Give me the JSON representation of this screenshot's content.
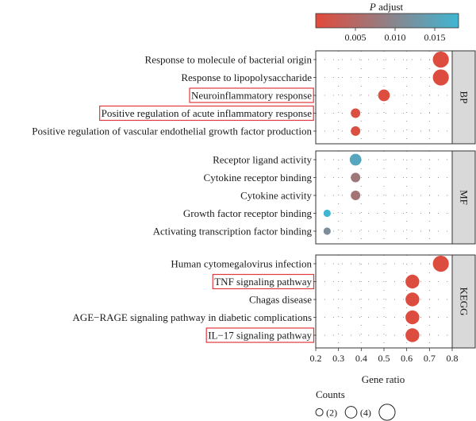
{
  "chart_data": {
    "type": "scatter",
    "xlabel": "Gene ratio",
    "xlim": [
      0.2,
      0.8
    ],
    "xticks": [
      "0.2",
      "0.3",
      "0.4",
      "0.5",
      "0.6",
      "0.7",
      "0.8"
    ],
    "color_legend": {
      "title_italic": "P",
      "title_rest": " adjust",
      "min": 0.0,
      "max": 0.018,
      "ticks": [
        {
          "value": 0.005,
          "label": "0.005"
        },
        {
          "value": 0.01,
          "label": "0.010"
        },
        {
          "value": 0.015,
          "label": "0.015"
        }
      ],
      "low_color": "#e24a3b",
      "high_color": "#3fb6d2"
    },
    "size_legend": {
      "title": "Counts",
      "entries": [
        {
          "count": 2,
          "label": "(2)"
        },
        {
          "count": 4,
          "label": "(4)"
        },
        {
          "count": 6,
          "label": ""
        }
      ]
    },
    "highlight_color": "#e0393e",
    "panels": [
      {
        "label": "BP",
        "terms": [
          {
            "name": "Response to molecule of bacterial origin",
            "gene_ratio": 0.75,
            "count": 6,
            "p_adjust": 0.0005,
            "highlight": false
          },
          {
            "name": "Response to lipopolysaccharide",
            "gene_ratio": 0.75,
            "count": 6,
            "p_adjust": 0.0005,
            "highlight": false
          },
          {
            "name": "Neuroinflammatory response",
            "gene_ratio": 0.5,
            "count": 4,
            "p_adjust": 0.0006,
            "highlight": true
          },
          {
            "name": "Positive regulation of acute inflammatory response",
            "gene_ratio": 0.375,
            "count": 3,
            "p_adjust": 0.0008,
            "highlight": true
          },
          {
            "name": "Positive regulation of vascular endothelial growth factor production",
            "gene_ratio": 0.375,
            "count": 3,
            "p_adjust": 0.0008,
            "highlight": false
          }
        ]
      },
      {
        "label": "MF",
        "terms": [
          {
            "name": "Receptor ligand activity",
            "gene_ratio": 0.375,
            "count": 4,
            "p_adjust": 0.0155,
            "highlight": false
          },
          {
            "name": "Cytokine receptor binding",
            "gene_ratio": 0.375,
            "count": 3,
            "p_adjust": 0.0075,
            "highlight": false
          },
          {
            "name": "Cytokine activity",
            "gene_ratio": 0.375,
            "count": 3,
            "p_adjust": 0.0068,
            "highlight": false
          },
          {
            "name": "Growth factor receptor binding",
            "gene_ratio": 0.25,
            "count": 2,
            "p_adjust": 0.018,
            "highlight": false
          },
          {
            "name": "Activating transcription factor binding",
            "gene_ratio": 0.25,
            "count": 2,
            "p_adjust": 0.0112,
            "highlight": false
          }
        ]
      },
      {
        "label": "KEGG",
        "terms": [
          {
            "name": "Human cytomegalovirus infection",
            "gene_ratio": 0.75,
            "count": 6,
            "p_adjust": 0.0005,
            "highlight": false
          },
          {
            "name": "TNF signaling pathway",
            "gene_ratio": 0.625,
            "count": 5,
            "p_adjust": 0.0005,
            "highlight": true
          },
          {
            "name": "Chagas disease",
            "gene_ratio": 0.625,
            "count": 5,
            "p_adjust": 0.0005,
            "highlight": false
          },
          {
            "name": "AGE−RAGE signaling pathway in diabetic complications",
            "gene_ratio": 0.625,
            "count": 5,
            "p_adjust": 0.0005,
            "highlight": false
          },
          {
            "name": "IL−17 signaling pathway",
            "gene_ratio": 0.625,
            "count": 5,
            "p_adjust": 0.0005,
            "highlight": true
          }
        ]
      }
    ]
  }
}
